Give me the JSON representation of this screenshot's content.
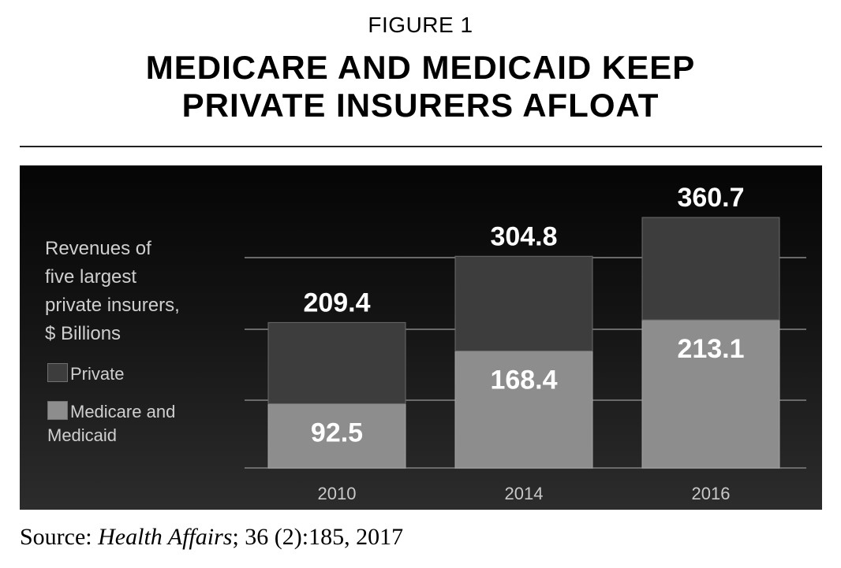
{
  "figure_label": "FIGURE 1",
  "title_line1": "MEDICARE AND MEDICAID KEEP",
  "title_line2": "PRIVATE INSURERS AFLOAT",
  "source": {
    "prefix": "Source: ",
    "journal": "Health Affairs",
    "citation": "; 36 (2):185, 2017"
  },
  "colors": {
    "private": "#3d3d3d",
    "medicare_medicaid": "#8d8d8d",
    "gridline": "#6a6a6a",
    "label_text": "#ffffff",
    "axis_text": "#c8c8c8"
  },
  "chart_data": {
    "type": "bar",
    "stacked": true,
    "legend_title": "Revenues of five largest private insurers, $ Billions",
    "legend_title_lines": [
      "Revenues of",
      "five largest",
      "private insurers,",
      "$ Billions"
    ],
    "categories": [
      "2010",
      "2014",
      "2016"
    ],
    "series": [
      {
        "name": "Medicare and Medicaid",
        "values": [
          92.5,
          168.4,
          213.1
        ]
      },
      {
        "name": "Private",
        "values": [
          116.9,
          136.4,
          147.6
        ]
      }
    ],
    "totals": [
      209.4,
      304.8,
      360.7
    ],
    "segment_labels": {
      "medicare_medicaid": [
        "92.5",
        "168.4",
        "213.1"
      ],
      "totals": [
        "209.4",
        "304.8",
        "360.7"
      ]
    },
    "ylim": [
      0,
      360.7
    ],
    "grid": true,
    "legend_placement": "left"
  }
}
